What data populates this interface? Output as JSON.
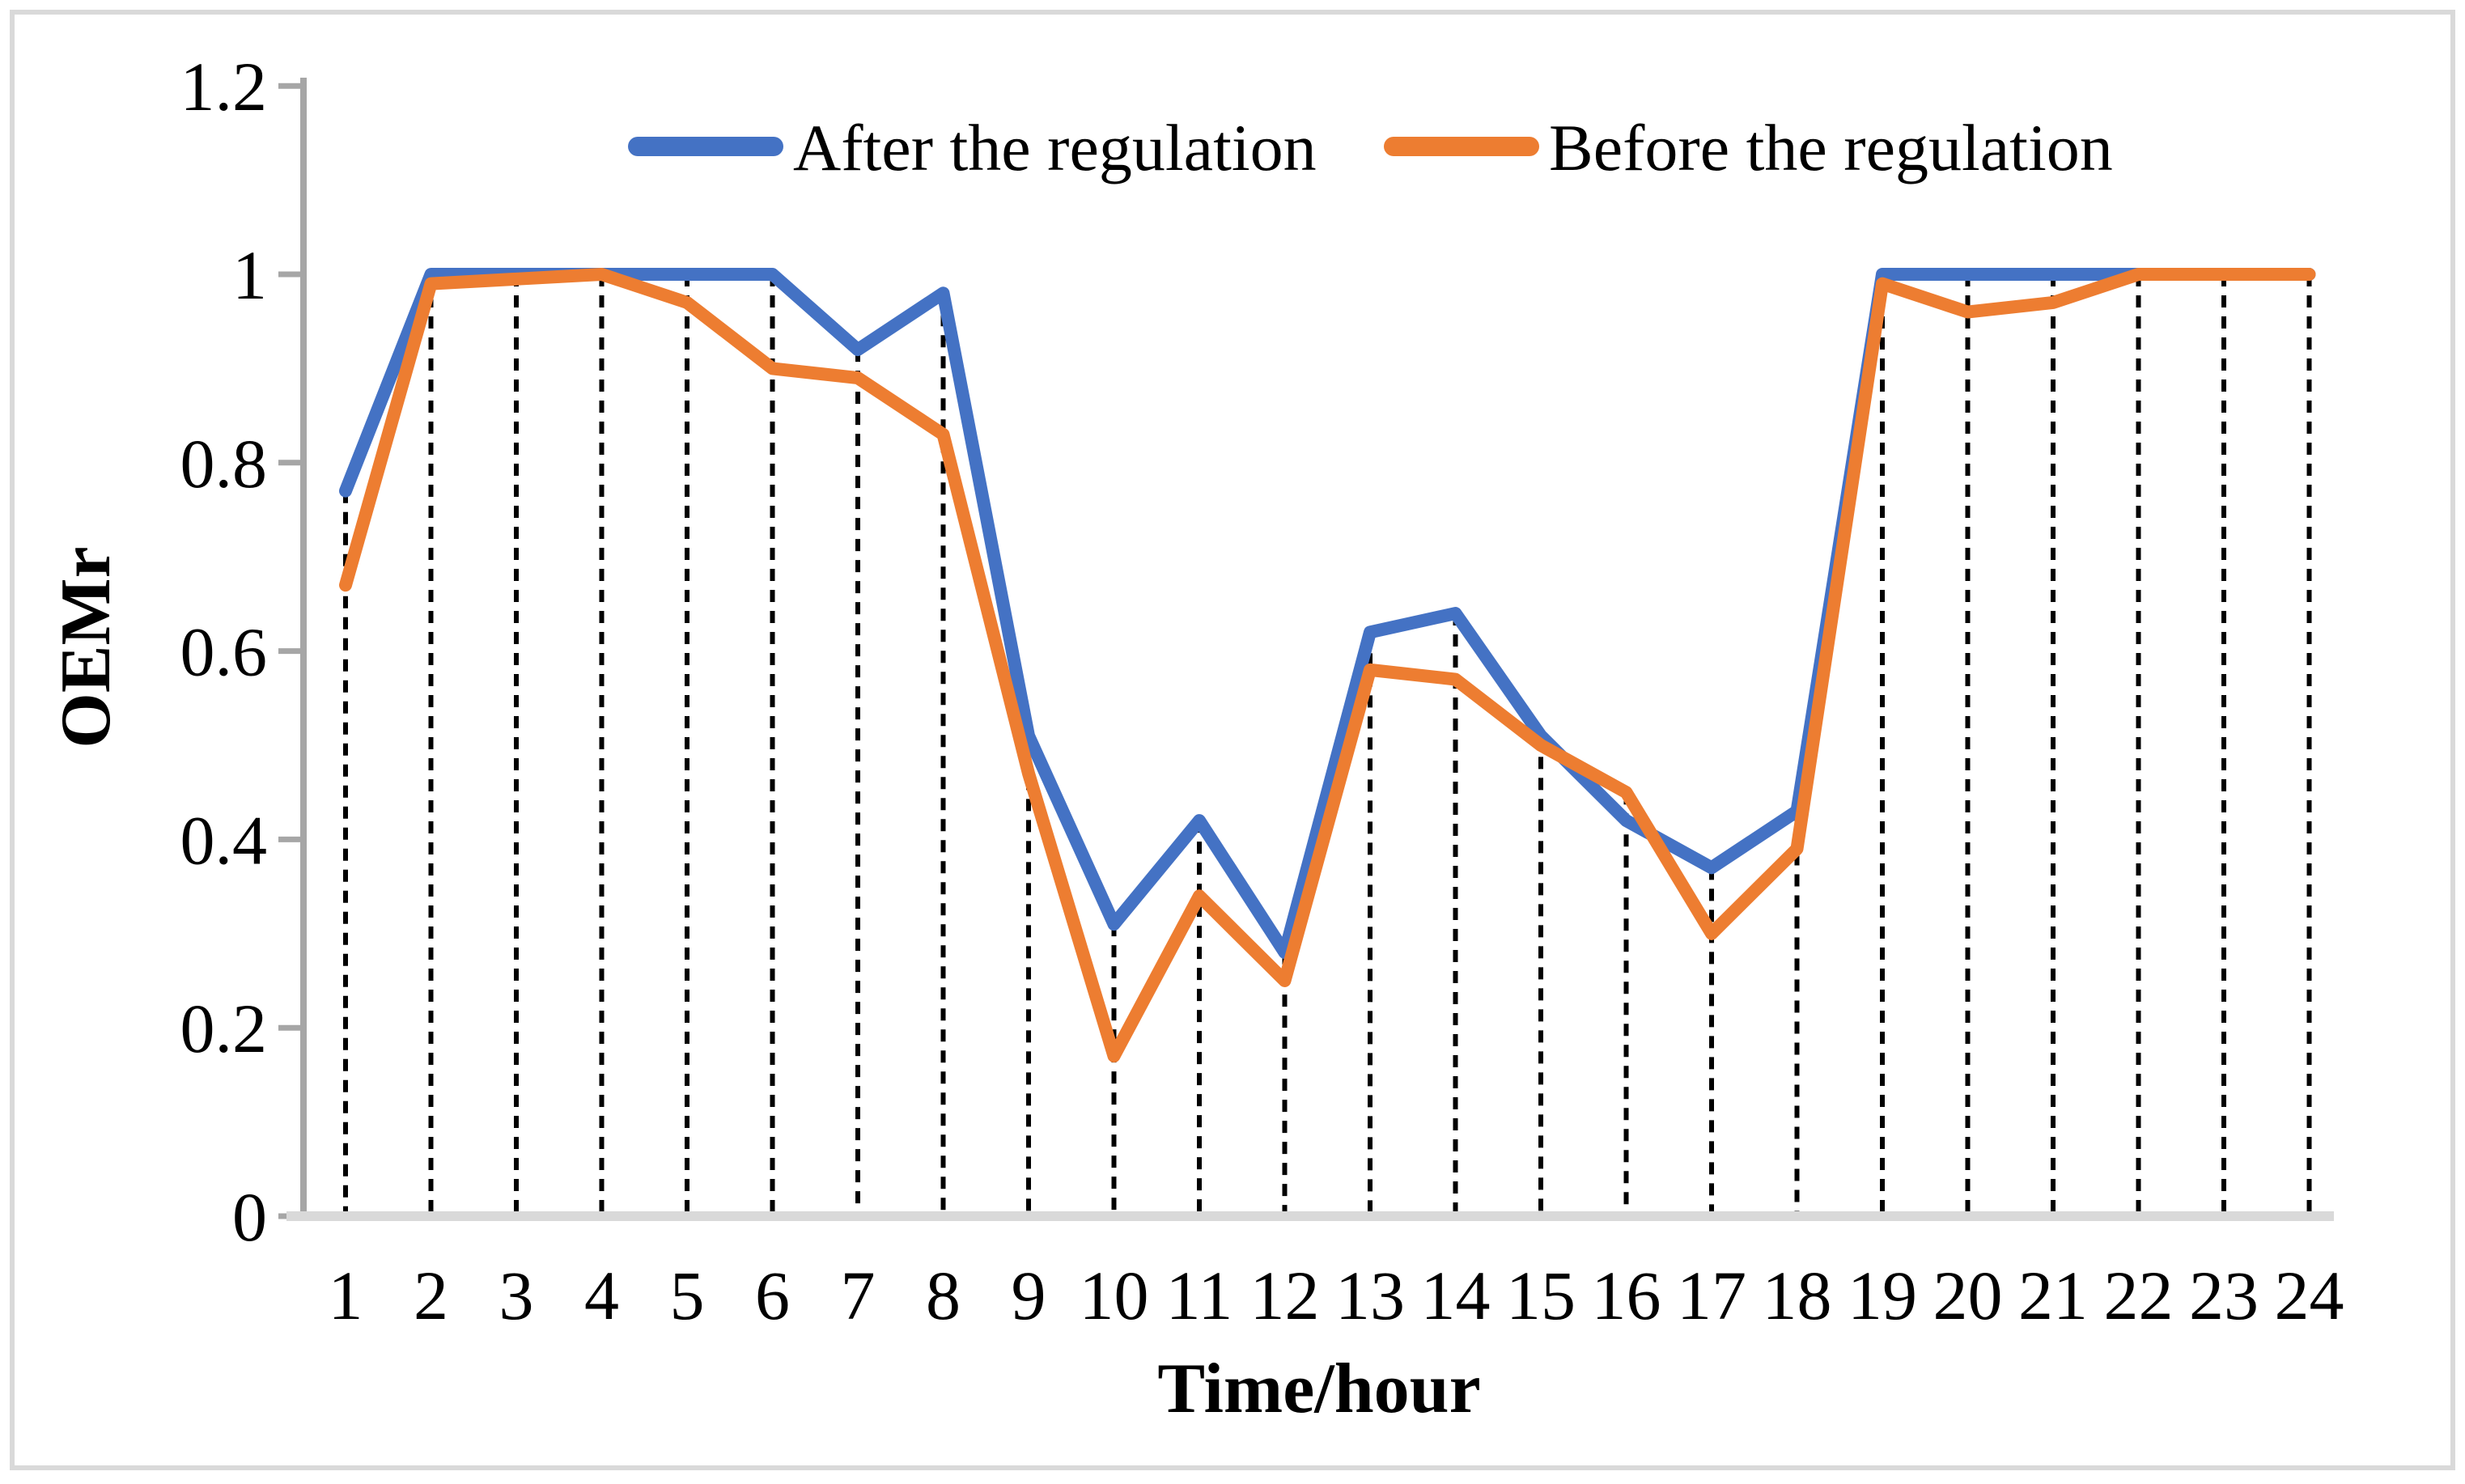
{
  "figure": {
    "background_color": "#ffffff",
    "border_color": "#D9D9D9"
  },
  "chart_data": {
    "type": "line",
    "title": "",
    "xlabel": "Time/hour",
    "ylabel": "OEMr",
    "x": [
      1,
      2,
      3,
      4,
      5,
      6,
      7,
      8,
      9,
      10,
      11,
      12,
      13,
      14,
      15,
      16,
      17,
      18,
      19,
      20,
      21,
      22,
      23,
      24
    ],
    "x_tick_labels": [
      "1",
      "2",
      "3",
      "4",
      "5",
      "6",
      "7",
      "8",
      "9",
      "10",
      "11",
      "12",
      "13",
      "14",
      "15",
      "16",
      "17",
      "18",
      "19",
      "20",
      "21",
      "22",
      "23",
      "24"
    ],
    "ylim": [
      0,
      1.2
    ],
    "y_ticks": {
      "values": [
        1.2,
        1,
        0.8,
        0.6,
        0.4,
        0.2,
        0
      ],
      "labels": [
        "1.2",
        "1",
        "0.8",
        "0.6",
        "0.4",
        "0.2",
        "0"
      ]
    },
    "grid": "vertical dashed drop lines from each data point to x-axis",
    "legend_position": "top-center",
    "series": [
      {
        "name": "After the regulation",
        "color": "#4472C4",
        "values": [
          0.77,
          1,
          1,
          1,
          1,
          1,
          0.92,
          0.98,
          0.51,
          0.31,
          0.42,
          0.28,
          0.62,
          0.64,
          0.51,
          0.42,
          0.37,
          0.43,
          1,
          1,
          1,
          1,
          1,
          1
        ]
      },
      {
        "name": "Before the regulation",
        "color": "#ED7D31",
        "values": [
          0.67,
          0.99,
          0.995,
          1,
          0.97,
          0.9,
          0.89,
          0.83,
          0.47,
          0.17,
          0.34,
          0.25,
          0.58,
          0.57,
          0.5,
          0.45,
          0.3,
          0.39,
          0.99,
          0.96,
          0.97,
          1,
          1,
          1
        ]
      }
    ],
    "axis_colors": {
      "y_axis": "#A6A6A6",
      "x_axis": "#D9D9D9",
      "drop_lines": "#000000"
    }
  }
}
